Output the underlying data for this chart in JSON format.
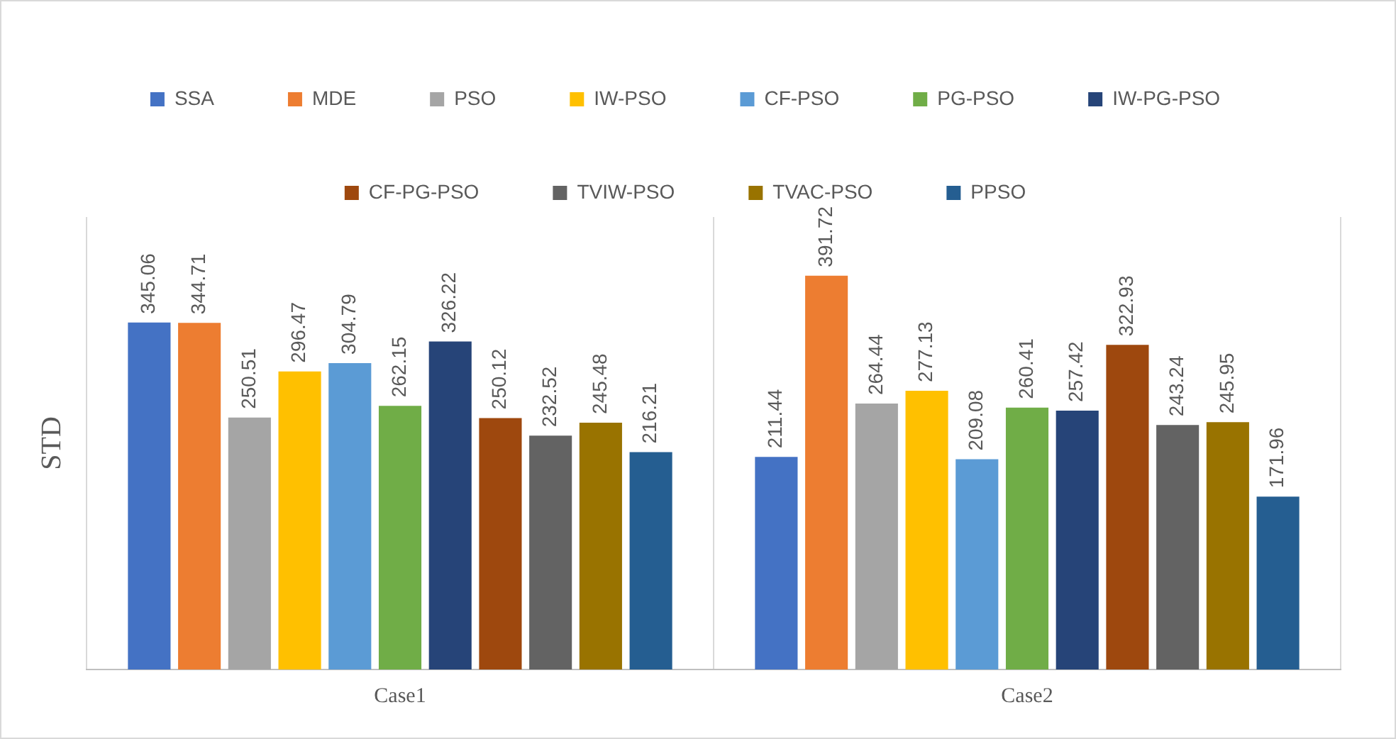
{
  "chart_data": {
    "type": "bar",
    "ylabel": "STD",
    "categories": [
      "Case1",
      "Case2"
    ],
    "series": [
      {
        "name": "SSA",
        "color": "#4472c4",
        "values": [
          345.06,
          211.44
        ]
      },
      {
        "name": "MDE",
        "color": "#ed7d31",
        "values": [
          344.71,
          391.72
        ]
      },
      {
        "name": "PSO",
        "color": "#a5a5a5",
        "values": [
          250.51,
          264.44
        ]
      },
      {
        "name": "IW-PSO",
        "color": "#ffc000",
        "values": [
          296.47,
          277.13
        ]
      },
      {
        "name": "CF-PSO",
        "color": "#5b9bd5",
        "values": [
          304.79,
          209.08
        ]
      },
      {
        "name": "PG-PSO",
        "color": "#70ad47",
        "values": [
          262.15,
          260.41
        ]
      },
      {
        "name": "IW-PG-PSO",
        "color": "#264478",
        "values": [
          326.22,
          257.42
        ]
      },
      {
        "name": "CF-PG-PSO",
        "color": "#9e480e",
        "values": [
          250.12,
          322.93
        ]
      },
      {
        "name": "TVIW-PSO",
        "color": "#636363",
        "values": [
          232.52,
          243.24
        ]
      },
      {
        "name": "TVAC-PSO",
        "color": "#997300",
        "values": [
          245.48,
          245.95
        ]
      },
      {
        "name": "PPSO",
        "color": "#255e91",
        "values": [
          216.21,
          171.96
        ]
      }
    ],
    "data_labels": true,
    "grid": "x",
    "legend": "top"
  }
}
